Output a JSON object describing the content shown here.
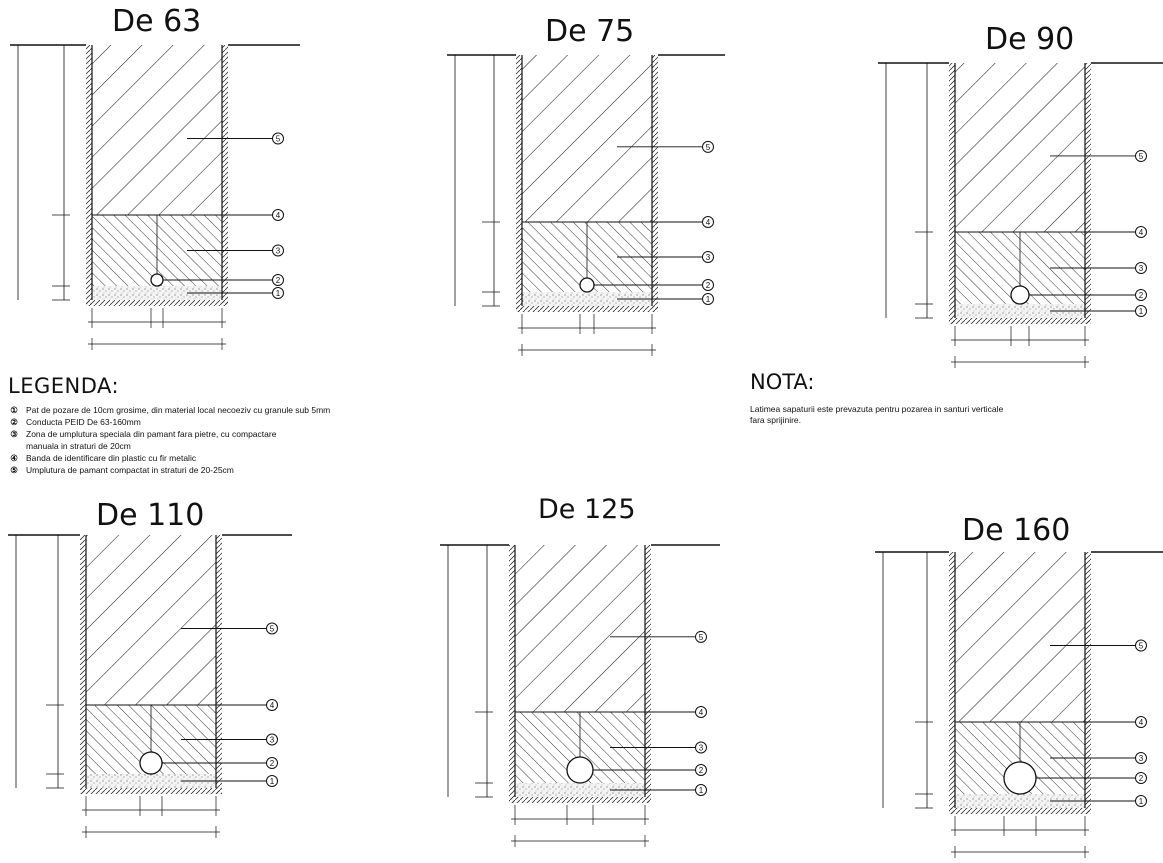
{
  "drawings": [
    {
      "title": "De 63"
    },
    {
      "title": "De 75"
    },
    {
      "title": "De 90"
    },
    {
      "title": "De 110"
    },
    {
      "title": "De 125"
    },
    {
      "title": "De 160"
    }
  ],
  "callouts": [
    "1",
    "2",
    "3",
    "4",
    "5"
  ],
  "legend": {
    "title": "LEGENDA:",
    "items": [
      {
        "num": "①",
        "text": "Pat de pozare de 10cm grosime, din material local necoeziv cu granule sub 5mm"
      },
      {
        "num": "②",
        "text": "Conducta PEID De 63-160mm"
      },
      {
        "num": "③",
        "text": "Zona de umplutura speciala din pamant fara pietre,  cu compactare\nmanuala in straturi de 20cm"
      },
      {
        "num": "④",
        "text": "Banda de identificare din plastic cu fir metalic"
      },
      {
        "num": "⑤",
        "text": "Umplutura de pamant compactat in straturi de 20-25cm"
      }
    ]
  },
  "nota": {
    "title": "NOTA:",
    "text": "Latimea sapaturii este prevazuta pentru pozarea in santuri verticale\nfara sprijinire."
  }
}
